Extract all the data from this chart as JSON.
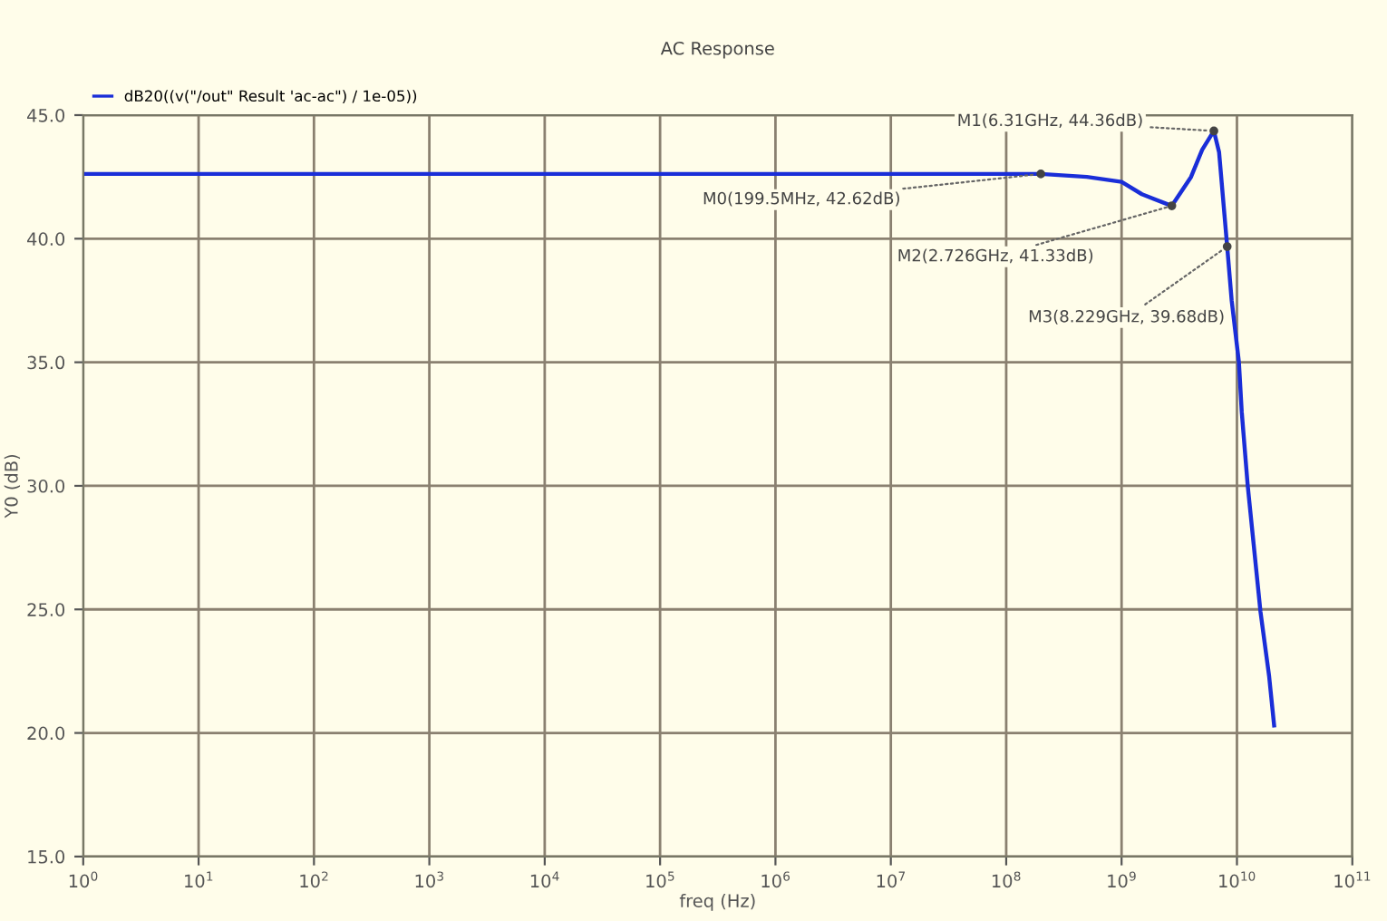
{
  "chart_data": {
    "type": "line",
    "title": "AC Response",
    "xlabel": "freq (Hz)",
    "ylabel": "Y0 (dB)",
    "log": "x",
    "grid": true,
    "legend": "top left",
    "marker": "none",
    "line_style": "solid",
    "xlim": [
      1,
      100000000000
    ],
    "ylim": [
      15,
      45
    ],
    "xticks": [
      {
        "value": 1,
        "label": "10$^{0}$"
      },
      {
        "value": 10,
        "label": "10$^{1}$"
      },
      {
        "value": 100,
        "label": "10$^{2}$"
      },
      {
        "value": 1000,
        "label": "10$^{3}$"
      },
      {
        "value": 10000,
        "label": "10$^{4}$"
      },
      {
        "value": 100000,
        "label": "10$^{5}$"
      },
      {
        "value": 1000000,
        "label": "10$^{6}$"
      },
      {
        "value": 10000000,
        "label": "10$^{7}$"
      },
      {
        "value": 100000000,
        "label": "10$^{8}$"
      },
      {
        "value": 1000000000,
        "label": "10$^{9}$"
      },
      {
        "value": 10000000000,
        "label": "10$^{10}$"
      },
      {
        "value": 100000000000,
        "label": "10$^{11}$"
      }
    ],
    "yticks": [
      {
        "value": 15,
        "label": "15.0"
      },
      {
        "value": 20,
        "label": "20.0"
      },
      {
        "value": 25,
        "label": "25.0"
      },
      {
        "value": 30,
        "label": "30.0"
      },
      {
        "value": 35,
        "label": "35.0"
      },
      {
        "value": 40,
        "label": "40.0"
      },
      {
        "value": 45,
        "label": "45.0"
      }
    ],
    "series": [
      {
        "name": "dB20((v(\"/out\" Result 'ac-ac\") / 1e-05))",
        "color": "#1a2ed8",
        "x": [
          1,
          100000000,
          199500000,
          500000000,
          1000000000,
          1500000000,
          2726000000,
          4000000000,
          5000000000,
          6310000000,
          7000000000,
          8229000000,
          9000000000,
          10400000000,
          11000000000,
          12400000000,
          16000000000,
          19000000000,
          21000000000
        ],
        "values": [
          42.62,
          42.62,
          42.62,
          42.5,
          42.3,
          41.8,
          41.33,
          42.5,
          43.6,
          44.36,
          43.5,
          39.68,
          37.5,
          35.0,
          33.0,
          30.0,
          24.9,
          22.3,
          20.3
        ]
      }
    ],
    "annotations": [
      {
        "text": "M0(199.5MHz, 42.62dB)",
        "x": 199500000,
        "y": 42.62
      },
      {
        "text": "M1(6.31GHz, 44.36dB)",
        "x": 6310000000,
        "y": 44.36
      },
      {
        "text": "M2(2.726GHz, 41.33dB)",
        "x": 2726000000,
        "y": 41.33
      },
      {
        "text": "M3(8.229GHz, 39.68dB)",
        "x": 8229000000,
        "y": 39.68
      }
    ]
  }
}
